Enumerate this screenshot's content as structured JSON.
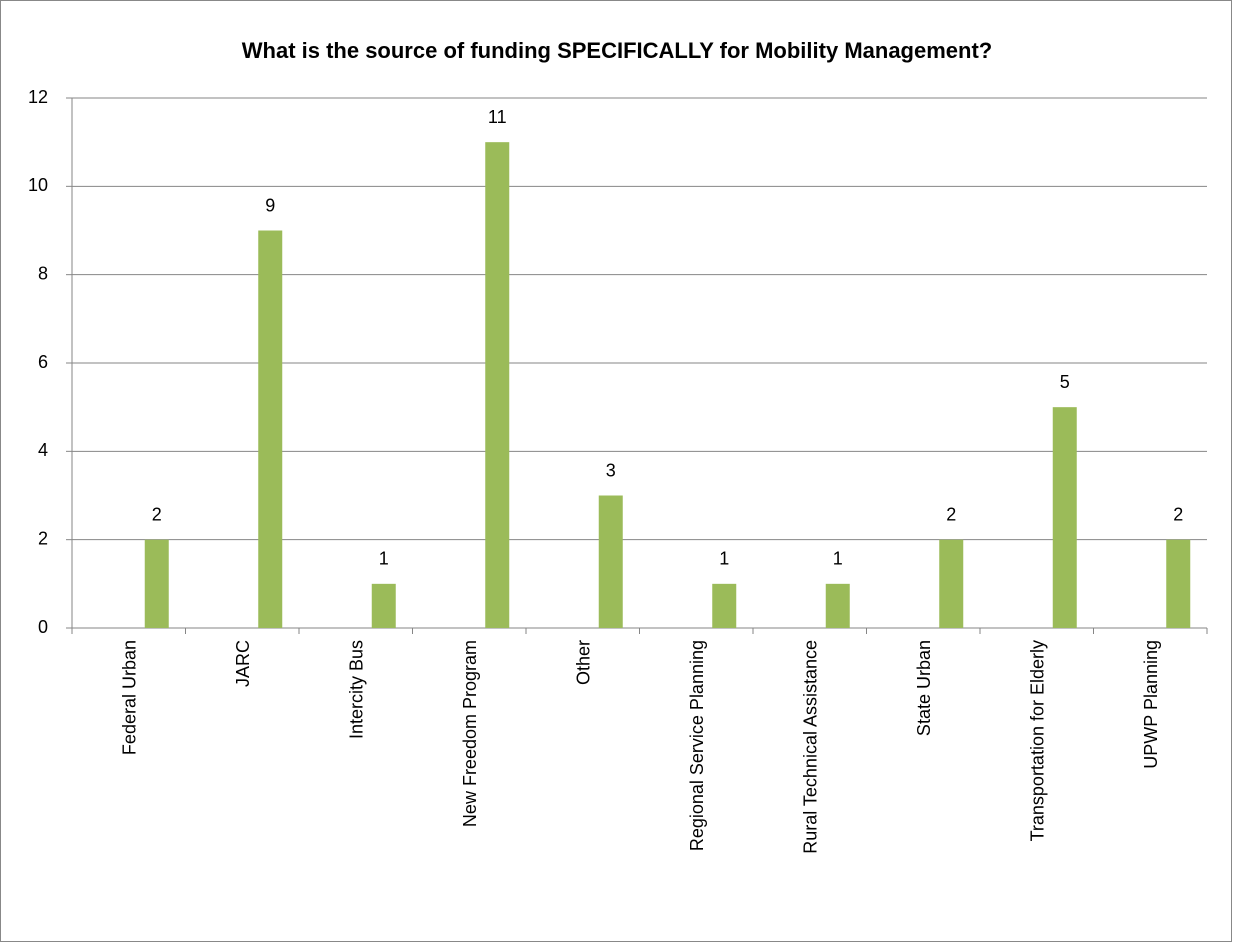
{
  "chart_data": {
    "type": "bar",
    "title": "What is the source of funding SPECIFICALLY for Mobility Management?",
    "categories": [
      "Federal Urban",
      "JARC",
      "Intercity Bus",
      "New Freedom Program",
      "Other",
      "Regional Service Planning",
      "Rural Technical Assistance",
      "State Urban",
      "Transportation for Elderly",
      "UPWP Planning"
    ],
    "values": [
      2,
      9,
      1,
      11,
      3,
      1,
      1,
      2,
      5,
      2
    ],
    "color": "#9bbb59",
    "ylim": [
      0,
      12
    ],
    "yticks": [
      0,
      2,
      4,
      6,
      8,
      10,
      12
    ],
    "grid": true
  }
}
